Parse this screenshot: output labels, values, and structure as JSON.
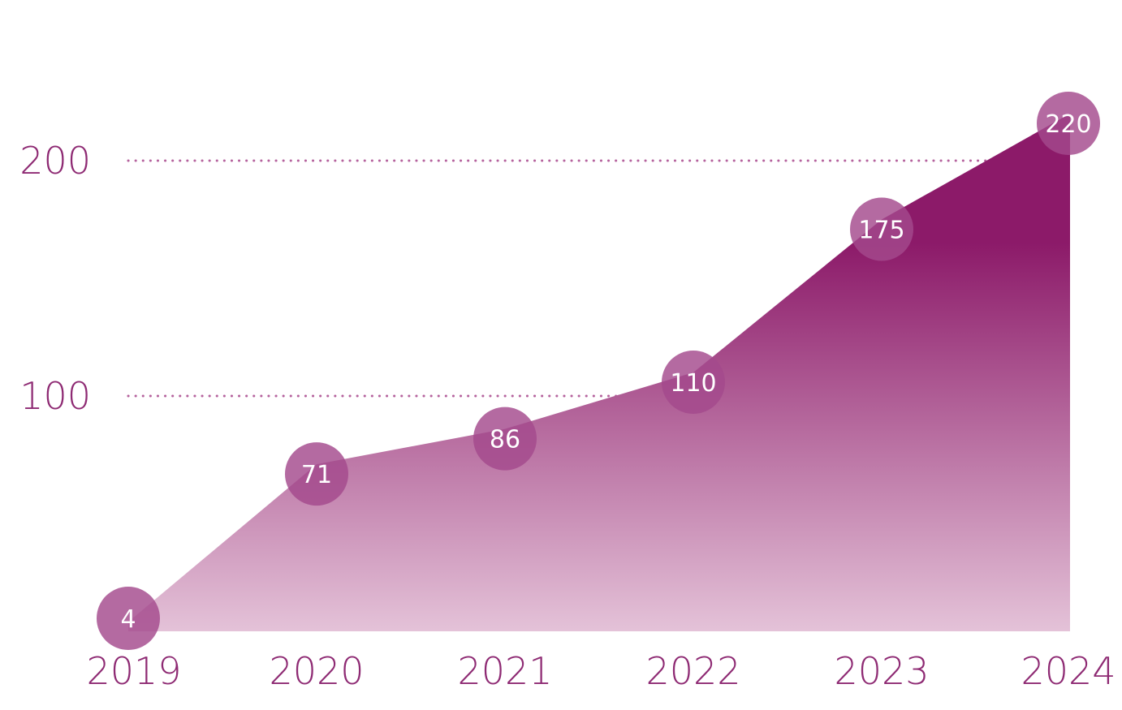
{
  "colors": {
    "text": "#8e2a73",
    "area_top": "#8c1a69",
    "area_bottom": "#e4c2d8",
    "grid": "#b5629d",
    "bubble": "#a3498c",
    "bubble_label": "#ffffff"
  },
  "chart_data": {
    "type": "area",
    "title": "",
    "xlabel": "",
    "ylabel": "",
    "x": [
      "2019",
      "2020",
      "2021",
      "2022",
      "2023",
      "2024"
    ],
    "series": [
      {
        "values": [
          4,
          71,
          86,
          110,
          175,
          220
        ]
      }
    ],
    "data_labels": [
      "4",
      "71",
      "86",
      "110",
      "175",
      "220"
    ],
    "y_ticks": [
      "100",
      "200"
    ],
    "ylim": [
      0,
      220
    ],
    "grid": "horizontal dotted at 100 and 200",
    "legend": "none"
  }
}
